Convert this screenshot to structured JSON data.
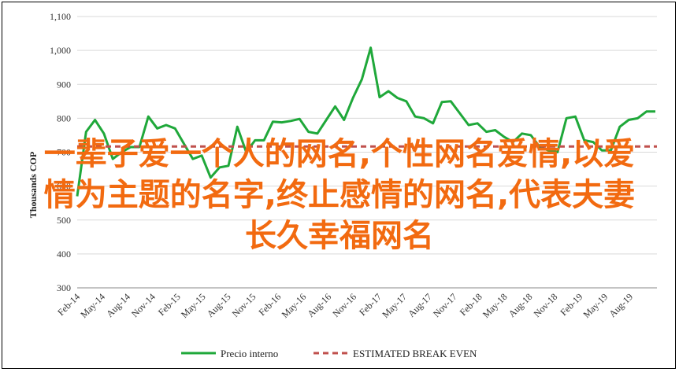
{
  "chart_data": {
    "type": "line",
    "ylabel": "Thousands COP",
    "ylim": [
      300,
      1100
    ],
    "yticks": [
      300,
      400,
      500,
      600,
      700,
      800,
      900,
      1000,
      1100
    ],
    "ytick_labels": [
      "300",
      "400",
      "500",
      "600",
      "700",
      "800",
      "900",
      "1,000",
      "1,100"
    ],
    "xtick_labels": [
      "Feb-14",
      "May-14",
      "Aug-14",
      "Nov-14",
      "Feb-15",
      "May-15",
      "Aug-15",
      "Nov-15",
      "Feb-16",
      "May-16",
      "Aug-16",
      "Nov-16",
      "Feb-17",
      "May-17",
      "Aug-17",
      "Nov-17",
      "Feb-18",
      "May-18",
      "Aug-18",
      "Nov-18",
      "Feb-19",
      "May-19",
      "Aug-19"
    ],
    "series": [
      {
        "name": "Precio interno",
        "color": "#1fa83a",
        "values": [
          570,
          760,
          795,
          755,
          680,
          700,
          715,
          715,
          805,
          770,
          780,
          770,
          725,
          680,
          690,
          625,
          655,
          660,
          775,
          700,
          735,
          735,
          790,
          788,
          792,
          798,
          760,
          755,
          795,
          835,
          795,
          860,
          915,
          1008,
          862,
          880,
          860,
          850,
          805,
          800,
          785,
          848,
          850,
          815,
          780,
          785,
          760,
          765,
          745,
          730,
          755,
          750,
          715,
          705,
          700,
          800,
          805,
          735,
          730,
          705,
          705,
          775,
          795,
          800,
          820,
          820
        ]
      },
      {
        "name": "ESTIMATED BREAK EVEN",
        "color": "#c0504d",
        "dashed": true,
        "values": [
          717,
          717
        ]
      }
    ],
    "legend_position": "bottom"
  },
  "overlay": {
    "lines": [
      "一辈子爱一个人的网名,个性网名爱情,以爱",
      "情为主题的名字,终止感情的网名,代表夫妻",
      "长久幸福网名"
    ]
  }
}
